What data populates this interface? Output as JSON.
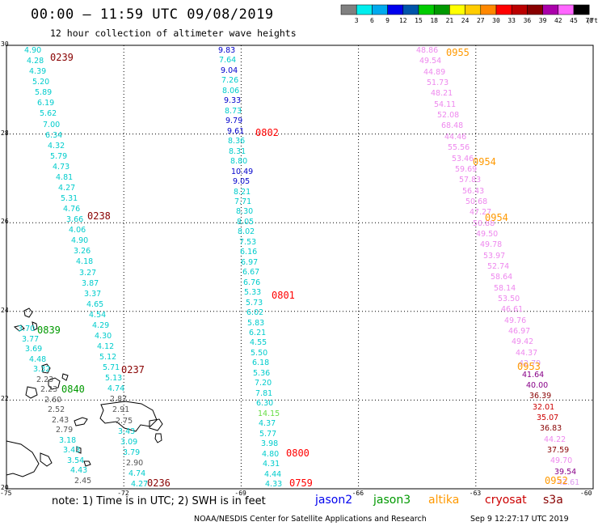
{
  "header": {
    "title": "00:00 – 11:59 UTC 09/08/2019",
    "subtitle": "12 hour collection of altimeter wave heights"
  },
  "color_scale": {
    "colors": [
      "#808080",
      "#00eeee",
      "#00aaee",
      "#0000ee",
      "#0055aa",
      "#00cc00",
      "#009900",
      "#ffff00",
      "#ffcc00",
      "#ff8800",
      "#ff0000",
      "#bb0000",
      "#880000",
      "#aa00aa",
      "#ff66ff",
      "#000000"
    ],
    "labels": [
      "3",
      "6",
      "9",
      "12",
      "15",
      "18",
      "21",
      "24",
      "27",
      "30",
      "33",
      "36",
      "39",
      "42",
      "45",
      "70",
      "(ft)"
    ]
  },
  "axes": {
    "lat_labels": [
      "30",
      "28",
      "26",
      "24",
      "22",
      "20"
    ],
    "lon_labels": [
      "-75",
      "-72",
      "-69",
      "-66",
      "-63",
      "-60"
    ]
  },
  "tracks": [
    {
      "color_key": "cyan_mix",
      "values": [
        "4.90",
        "4.28",
        "4.39",
        "5.20",
        "5.89",
        "6.19",
        "5.62",
        "7.00",
        "6.34",
        "4.32",
        "5.79",
        "4.73",
        "4.81",
        "4.27",
        "5.31",
        "4.76",
        "3.66",
        "4.06",
        "4.90",
        "3.26",
        "4.18",
        "3.27",
        "3.87",
        "3.37",
        "4.65",
        "4.54",
        "4.29",
        "4.30",
        "4.12",
        "5.12",
        "5.71",
        "5.13",
        "4.74",
        "2.87",
        "2.91",
        "2.75",
        "3.43",
        "3.09",
        "3.79",
        "2.90",
        "4.74",
        "4.27"
      ]
    },
    {
      "color_key": "left_small",
      "values": [
        "3.70",
        "3.77",
        "3.69",
        "4.48",
        "3.32",
        "2.23",
        "2.23",
        "2.60",
        "2.52",
        "2.43",
        "2.79",
        "3.18",
        "3.43",
        "3.54",
        "4.43",
        "2.45"
      ]
    },
    {
      "color_key": "blue_mix",
      "values": [
        "9.83",
        "7.64",
        "9.04",
        "7.26",
        "8.06",
        "9.33",
        "8.73",
        "9.79",
        "9.61",
        "8.36",
        "8.31",
        "8.80",
        "10.49",
        "9.05",
        "8.21",
        "7.71",
        "8.30",
        "8.05",
        "8.02",
        "7.53",
        "6.16",
        "6.97",
        "6.67",
        "6.76",
        "5.33",
        "5.73",
        "6.02",
        "5.83",
        "6.21",
        "4.55",
        "5.50",
        "6.18",
        "5.36",
        "7.20",
        "7.81",
        "6.30",
        "14.15",
        "4.37",
        "5.77",
        "3.98",
        "4.80",
        "4.31",
        "4.44",
        "4.33"
      ]
    },
    {
      "color_key": "pink_mix",
      "values": [
        "48.86",
        "49.54",
        "44.89",
        "51.73",
        "48.21",
        "54.11",
        "52.08",
        "68.48",
        "44.46",
        "55.56",
        "53.46",
        "59.69",
        "57.83",
        "56.43",
        "50.68",
        "47.27",
        "50.88",
        "49.50",
        "49.78",
        "53.97",
        "52.74",
        "58.64",
        "58.14",
        "53.50",
        "46.61",
        "49.76",
        "46.97",
        "49.42",
        "44.37",
        "42.79",
        "41.64",
        "40.00",
        "36.39",
        "32.01",
        "35.07",
        "36.83",
        "44.22",
        "37.59",
        "49.70",
        "39.54",
        "42.61"
      ]
    }
  ],
  "time_labels": [
    {
      "text": "0239",
      "color": "#880000"
    },
    {
      "text": "0238",
      "color": "#880000"
    },
    {
      "text": "0237",
      "color": "#880000"
    },
    {
      "text": "0236",
      "color": "#880000"
    },
    {
      "text": "0839",
      "color": "#009900"
    },
    {
      "text": "0840",
      "color": "#009900"
    },
    {
      "text": "0802",
      "color": "#ff0000"
    },
    {
      "text": "0801",
      "color": "#ff0000"
    },
    {
      "text": "0800",
      "color": "#ff0000"
    },
    {
      "text": "0759",
      "color": "#ff0000"
    },
    {
      "text": "0955",
      "color": "#ff9900"
    },
    {
      "text": "0954",
      "color": "#ff9900"
    },
    {
      "text": "0954",
      "color": "#ff9900"
    },
    {
      "text": "0953",
      "color": "#ff9900"
    },
    {
      "text": "0952",
      "color": "#ff9900"
    }
  ],
  "footer": {
    "note": "note:  1) Time is in UTC;  2) SWH is in feet",
    "legend": [
      {
        "label": "jason2",
        "color": "#0000ee"
      },
      {
        "label": "jason3",
        "color": "#009900"
      },
      {
        "label": "altika",
        "color": "#ff9900"
      },
      {
        "label": "cryosat",
        "color": "#cc0000"
      },
      {
        "label": "s3a",
        "color": "#880000"
      }
    ],
    "credit": "NOAA/NESDIS Center for Satellite Applications and Research",
    "timestamp": "Sep  9 12:27:17 UTC 2019"
  }
}
